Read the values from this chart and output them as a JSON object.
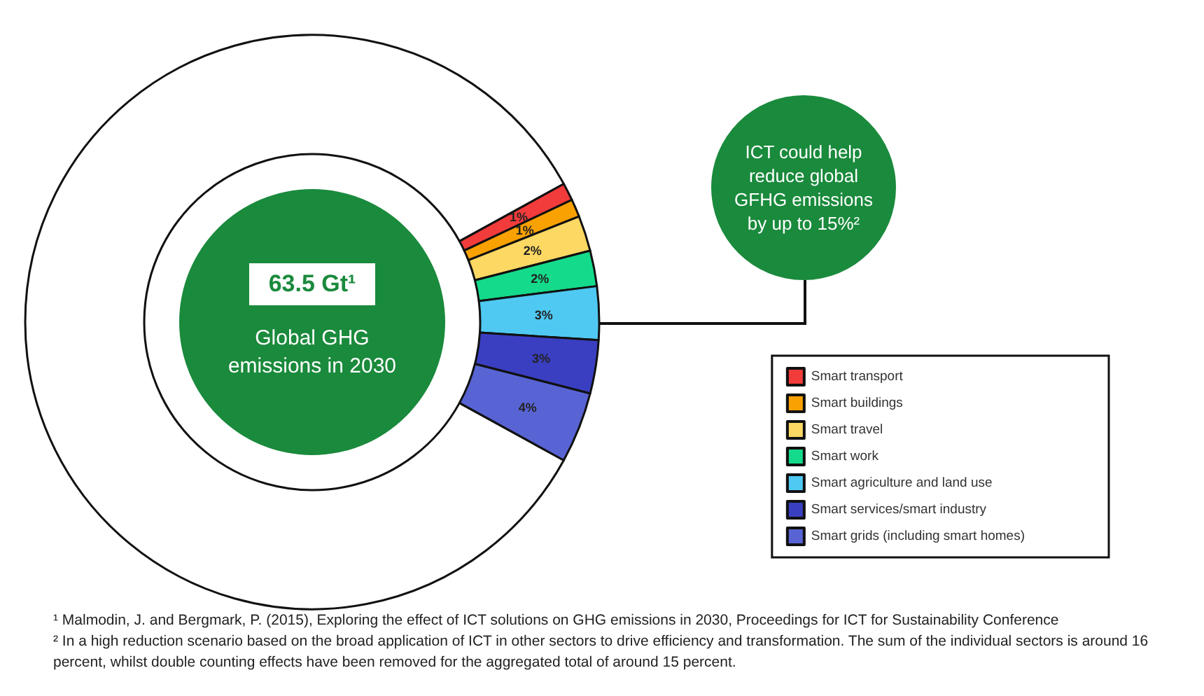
{
  "chart_data": {
    "type": "donut",
    "categories": [
      "Smart transport",
      "Smart buildings",
      "Smart travel",
      "Smart work",
      "Smart agriculture and land use",
      "Smart services/smart industry",
      "Smart grids (including smart homes)",
      null
    ],
    "values": [
      1,
      1,
      2,
      2,
      3,
      3,
      4,
      84
    ],
    "colors": [
      "#f23b3b",
      "#f9a100",
      "#fdd862",
      "#14db8b",
      "#4fc9f2",
      "#3a3fc2",
      "#5864d4",
      "#ffffff"
    ],
    "value_labels": [
      "1%",
      "1%",
      "2%",
      "2%",
      "3%",
      "3%",
      "4%",
      null
    ],
    "legend": "bottom right",
    "annotations": [
      "63.5 Gt¹",
      "Global GHG emissions in 2030",
      "ICT could help reduce global GFHG emissions by up to 15%²",
      "¹ Malmodin, J. and Bergmark, P. (2015), Exploring the effect of ICT solutions on GHG emissions in 2030, Proceedings for ICT for Sustainability Conference",
      "² In a high reduction scenario based on the broad application of ICT in other sectors to drive efficiency and transformation. The sum of the individual sectors is around 16 percent, whilst double counting effects have been removed for the aggregated total of around 15 percent."
    ]
  }
}
